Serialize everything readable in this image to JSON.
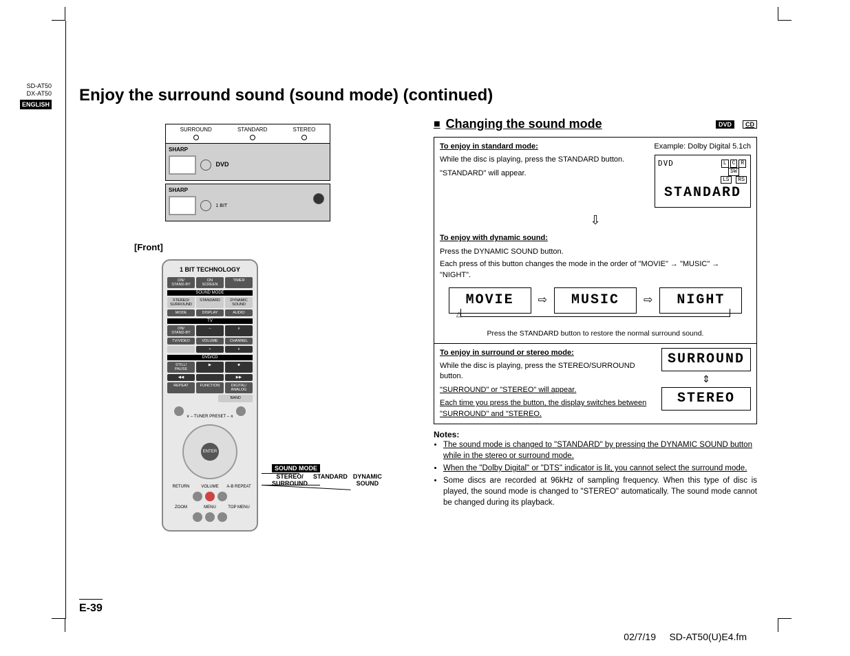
{
  "side": {
    "model1": "SD-AT50",
    "model2": "DX-AT50",
    "language": "ENGLISH"
  },
  "title": "Enjoy the surround sound (sound mode) (continued)",
  "device": {
    "buttons": [
      "SURROUND",
      "STANDARD",
      "STEREO"
    ],
    "brand": "SHARP"
  },
  "front_label": "[Front]",
  "remote": {
    "logo": "1 BIT TECHNOLOGY",
    "row_power": [
      "ON/\nSTAND-BY",
      "ON\nSCREEN",
      "TIMER"
    ],
    "soundmode_bar": "SOUND MODE",
    "row_sound": [
      "STEREO/\nSURROUND",
      "STANDARD",
      "DYNAMIC\nSOUND"
    ],
    "row_mode": [
      "MODE",
      "DISPLAY",
      "AUDIO"
    ],
    "tv_bar": "TV",
    "row_tv1": [
      "ON/\nSTAND-BY",
      "–",
      "∧"
    ],
    "row_tv2": [
      "TV/VIDEO",
      "VOLUME",
      "CHANNEL"
    ],
    "row_tv3": [
      "",
      "+",
      "∨"
    ],
    "dvd_bar": "DVD/CD",
    "row_dvd": [
      "STILL/\nPAUSE",
      "",
      ""
    ],
    "row_func": [
      "REPEAT",
      "FUNCTION",
      "DIGITAL/\nANALOG"
    ],
    "band": "BAND",
    "tuner": "∨ – TUNER PRESET – ∧",
    "enter": "ENTER",
    "row_bot1": [
      "RETURN",
      "VOLUME",
      "A-B REPEAT"
    ],
    "row_bot2": [
      "ZOOM",
      "MENU",
      "TOP MENU"
    ]
  },
  "callout": {
    "title": "SOUND MODE",
    "labels": [
      "STEREO/\nSURROUND",
      "STANDARD",
      "DYNAMIC\nSOUND"
    ]
  },
  "section": {
    "heading": "Changing the sound mode",
    "media": [
      "DVD",
      "CD"
    ]
  },
  "box1": {
    "sub": "To enjoy in standard mode:",
    "example": "Example: Dolby Digital 5.1ch",
    "line1": "While the disc is playing, press the STANDARD button.",
    "line2": "\"STANDARD\" will appear.",
    "lcd_top": "DVD",
    "speakers": [
      "L",
      "C",
      "R",
      "SW",
      "LS",
      "RS"
    ],
    "lcd": "STANDARD"
  },
  "box2": {
    "sub": "To enjoy with dynamic sound:",
    "line1": "Press the DYNAMIC SOUND button.",
    "line2": "Each press of this button changes the mode in the order of \"MOVIE\" → \"MUSIC\" → \"NIGHT\".",
    "modes": [
      "MOVIE",
      "MUSIC",
      "NIGHT"
    ],
    "restore": "Press the STANDARD button to restore the normal surround sound."
  },
  "box3": {
    "sub": "To enjoy in surround or stereo mode:",
    "line1": "While the disc is playing, press the STEREO/SURROUND button.",
    "line2": "\"SURROUND\" or \"STEREO\" will appear.",
    "line3": "Each time you press the button, the display switches between \"SURROUND\" and \"STEREO.",
    "lcd1": "SURROUND",
    "lcd2": "STEREO"
  },
  "notes": {
    "head": "Notes:",
    "items": [
      "The sound mode is changed to \"STANDARD\" by pressing the DYNAMIC SOUND button while in the stereo or surround mode.",
      "When the \"Dolby Digital\" or \"DTS\" indicator is lit, you cannot select the surround mode.",
      "Some discs are recorded at 96kHz of sampling frequency. When this type of disc is played, the sound mode is changed to \"STEREO\" automatically. The sound mode cannot be changed during its playback."
    ]
  },
  "page_number": "E-39",
  "footer": {
    "date": "02/7/19",
    "file": "SD-AT50(U)E4.fm"
  },
  "colors": {
    "text": "#000000",
    "bg": "#ffffff",
    "device_bg": "#d0d0d0",
    "remote_bg": "#e8e8e8"
  }
}
